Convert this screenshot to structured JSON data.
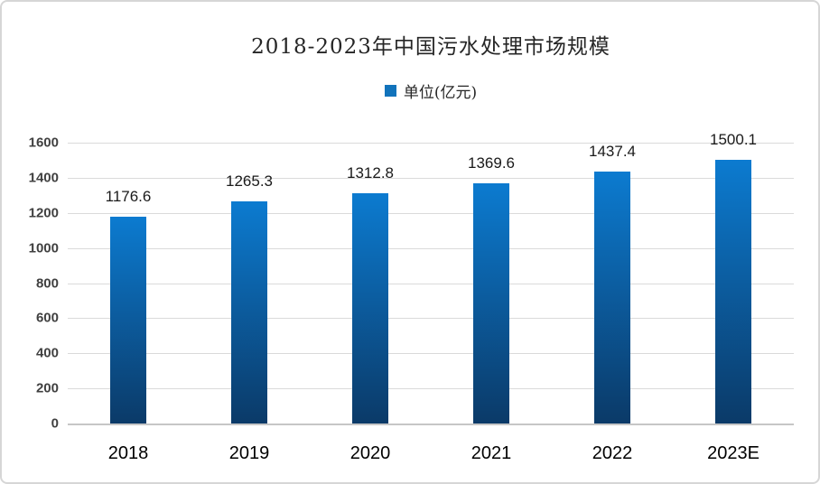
{
  "window": {
    "background": "#ffffff",
    "border_color": "#d6d6d6"
  },
  "chart_data": {
    "type": "bar",
    "title": "2018-2023年中国污水处理市场规模",
    "legend": [
      {
        "label": "单位(亿元)",
        "color": "#1173bb"
      }
    ],
    "legend_position": "top-center",
    "categories": [
      "2018",
      "2019",
      "2020",
      "2021",
      "2022",
      "2023E"
    ],
    "values": [
      1176.6,
      1265.3,
      1312.8,
      1369.6,
      1437.4,
      1500.1
    ],
    "value_labels": [
      "1176.6",
      "1265.3",
      "1312.8",
      "1369.6",
      "1437.4",
      "1500.1"
    ],
    "xlabel": "",
    "ylabel": "",
    "ylim": [
      0,
      1600
    ],
    "yticks": [
      0,
      200,
      400,
      600,
      800,
      1000,
      1200,
      1400,
      1600
    ],
    "grid": "horizontal",
    "gridline_color": "#dadada",
    "axis_line_color": "#c6c6c6",
    "bar_gradient_top": "#0c7bd0",
    "bar_gradient_bottom": "#0b3a68"
  }
}
